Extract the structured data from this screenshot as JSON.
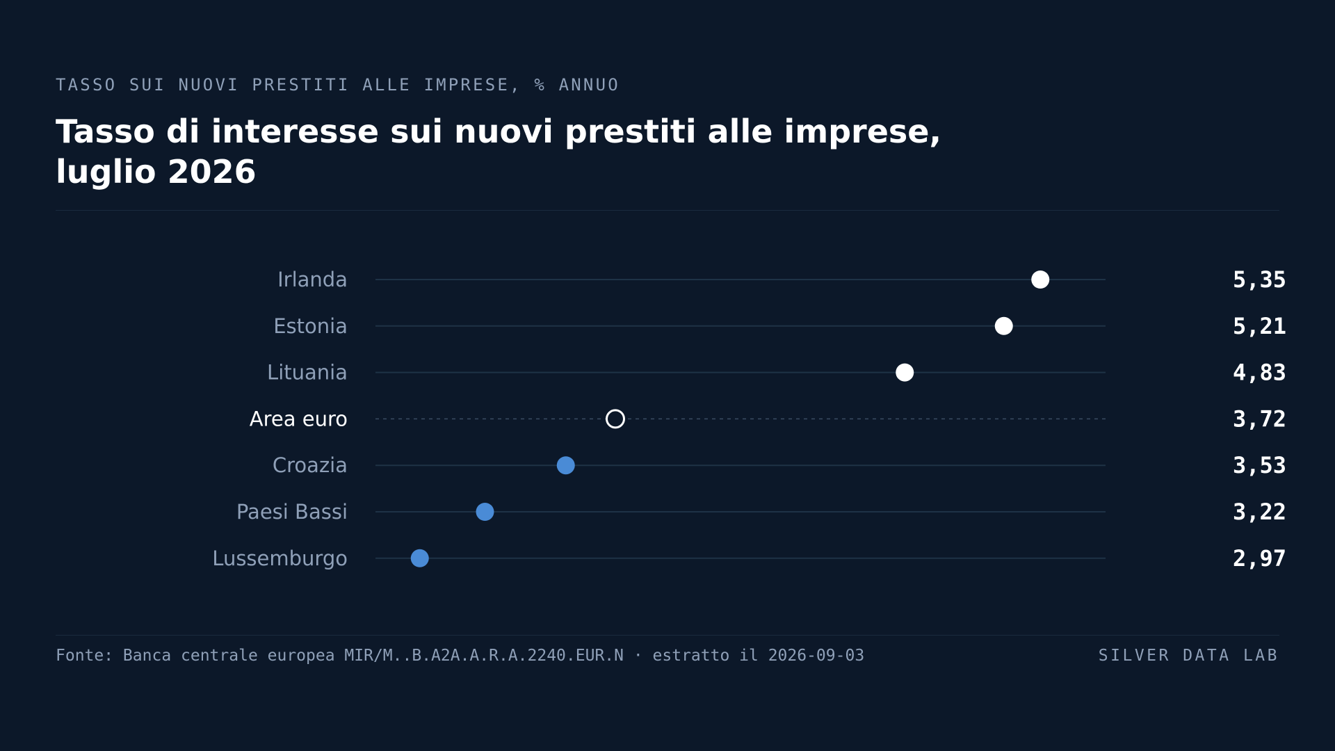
{
  "kicker": "TASSO SUI NUOVI PRESTITI ALLE IMPRESE, % ANNUO",
  "title": "Tasso di interesse sui nuovi prestiti alle imprese, luglio 2026",
  "footer": {
    "source": "Fonte: Banca centrale europea MIR/M..B.A2A.A.R.A.2240.EUR.N · estratto il 2026-09-03",
    "brand": "SILVER DATA LAB"
  },
  "colors": {
    "background": "#0c1829",
    "high": "#ffffff",
    "low": "#4a8bd6",
    "reference": "#ffffff",
    "track": "#1e3246",
    "label": "#8fa0b8"
  },
  "chart_data": {
    "type": "dot",
    "orientation": "horizontal",
    "xlim": [
      2.8,
      5.6
    ],
    "grid": false,
    "legend": "none",
    "categories": [
      "Irlanda",
      "Estonia",
      "Lituania",
      "Area euro",
      "Croazia",
      "Paesi Bassi",
      "Lussemburgo"
    ],
    "values": [
      5.35,
      5.21,
      4.83,
      3.72,
      3.53,
      3.22,
      2.97
    ],
    "value_labels": [
      "5,35",
      "5,21",
      "4,83",
      "3,72",
      "3,53",
      "3,22",
      "2,97"
    ],
    "reference_category": "Area euro"
  }
}
